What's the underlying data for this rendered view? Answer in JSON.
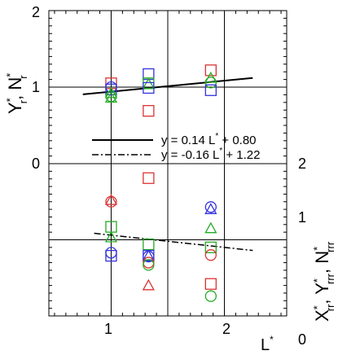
{
  "chart_data": {
    "type": "scatter",
    "xlabel": "L",
    "xlabel_sup": "*",
    "ylabel_top": {
      "parts": [
        "Y",
        "*",
        "r",
        ", N",
        "*",
        "r"
      ]
    },
    "ylabel_right": {
      "parts": [
        "X",
        "*",
        "rr",
        ", Y",
        "*",
        "rrr",
        ", N",
        "*",
        "rrr"
      ]
    },
    "x_range": [
      0.45,
      2.55
    ],
    "x_ticks": [
      "1",
      "2"
    ],
    "x_tick_values": [
      1,
      2
    ],
    "top_panel": {
      "y_range": [
        0,
        2
      ],
      "y_ticks": [
        "0",
        "1",
        "2"
      ],
      "y_tick_values": [
        0,
        1,
        2
      ],
      "grid_x": [
        1,
        1.5,
        2
      ],
      "grid_y": [
        1
      ],
      "fit_line": {
        "style": "solid",
        "x": [
          0.75,
          2.25
        ],
        "y": [
          0.905,
          1.12
        ]
      },
      "markers": [
        {
          "shape": "square",
          "color": "#dd3333",
          "x": 1.0,
          "y": 1.05
        },
        {
          "shape": "square",
          "color": "#3333dd",
          "x": 1.0,
          "y": 0.97
        },
        {
          "shape": "circle",
          "color": "#3333dd",
          "x": 1.0,
          "y": 1.0
        },
        {
          "shape": "triangle",
          "color": "#22aa22",
          "x": 1.0,
          "y": 0.86
        },
        {
          "shape": "triangle",
          "color": "#22aa22",
          "x": 1.0,
          "y": 0.92
        },
        {
          "shape": "circle",
          "color": "#22aa22",
          "x": 1.0,
          "y": 0.88
        },
        {
          "shape": "square",
          "color": "#3333dd",
          "x": 1.33,
          "y": 1.17
        },
        {
          "shape": "square",
          "color": "#22aa22",
          "x": 1.33,
          "y": 1.05
        },
        {
          "shape": "triangle",
          "color": "#22aa22",
          "x": 1.33,
          "y": 1.04
        },
        {
          "shape": "square",
          "color": "#3333dd",
          "x": 1.33,
          "y": 0.99
        },
        {
          "shape": "square",
          "color": "#dd3333",
          "x": 1.33,
          "y": 0.69
        },
        {
          "shape": "square",
          "color": "#dd3333",
          "x": 1.88,
          "y": 1.22
        },
        {
          "shape": "triangle",
          "color": "#22aa22",
          "x": 1.88,
          "y": 1.12
        },
        {
          "shape": "circle",
          "color": "#22aa22",
          "x": 1.88,
          "y": 1.06
        },
        {
          "shape": "square",
          "color": "#3333dd",
          "x": 1.88,
          "y": 0.96
        }
      ]
    },
    "bottom_panel": {
      "y_range": [
        0,
        2
      ],
      "y_ticks": [
        "0",
        "1",
        "2"
      ],
      "y_tick_values": [
        0,
        1,
        2
      ],
      "grid_x": [
        1,
        1.5,
        2
      ],
      "grid_y": [
        1
      ],
      "fit_line": {
        "style": "dashdot",
        "x": [
          0.85,
          2.25
        ],
        "y": [
          1.085,
          0.86
        ]
      },
      "markers": [
        {
          "shape": "circle",
          "color": "#dd3333",
          "x": 1.0,
          "y": 1.5
        },
        {
          "shape": "triangle",
          "color": "#dd3333",
          "x": 1.0,
          "y": 1.52
        },
        {
          "shape": "square",
          "color": "#22aa22",
          "x": 1.0,
          "y": 1.17
        },
        {
          "shape": "triangle",
          "color": "#22aa22",
          "x": 1.0,
          "y": 1.03
        },
        {
          "shape": "circle",
          "color": "#3333dd",
          "x": 1.0,
          "y": 0.83
        },
        {
          "shape": "square",
          "color": "#3333dd",
          "x": 1.0,
          "y": 0.79
        },
        {
          "shape": "square",
          "color": "#dd3333",
          "x": 1.33,
          "y": 1.81
        },
        {
          "shape": "square",
          "color": "#22aa22",
          "x": 1.33,
          "y": 0.94
        },
        {
          "shape": "circle",
          "color": "#3333dd",
          "x": 1.33,
          "y": 0.78
        },
        {
          "shape": "square",
          "color": "#3333dd",
          "x": 1.33,
          "y": 0.79
        },
        {
          "shape": "triangle",
          "color": "#3333dd",
          "x": 1.33,
          "y": 0.79
        },
        {
          "shape": "circle",
          "color": "#dd3333",
          "x": 1.33,
          "y": 0.7
        },
        {
          "shape": "circle",
          "color": "#22aa22",
          "x": 1.33,
          "y": 0.67
        },
        {
          "shape": "triangle",
          "color": "#dd3333",
          "x": 1.33,
          "y": 0.4
        },
        {
          "shape": "circle",
          "color": "#3333dd",
          "x": 1.88,
          "y": 1.43
        },
        {
          "shape": "triangle",
          "color": "#3333dd",
          "x": 1.88,
          "y": 1.4
        },
        {
          "shape": "triangle",
          "color": "#22aa22",
          "x": 1.88,
          "y": 1.15
        },
        {
          "shape": "square",
          "color": "#22aa22",
          "x": 1.88,
          "y": 0.9
        },
        {
          "shape": "circle",
          "color": "#dd3333",
          "x": 1.88,
          "y": 0.8
        },
        {
          "shape": "square",
          "color": "#dd3333",
          "x": 1.88,
          "y": 0.42
        },
        {
          "shape": "circle",
          "color": "#22aa22",
          "x": 1.88,
          "y": 0.26
        }
      ]
    },
    "legend": {
      "placement": "center",
      "entries": [
        {
          "style": "solid",
          "parts": [
            "y =  0.14 L",
            "*",
            " + 0.80"
          ]
        },
        {
          "style": "dashdot",
          "parts": [
            "y = -0.16 L",
            "*",
            " + 1.22"
          ]
        }
      ]
    }
  }
}
